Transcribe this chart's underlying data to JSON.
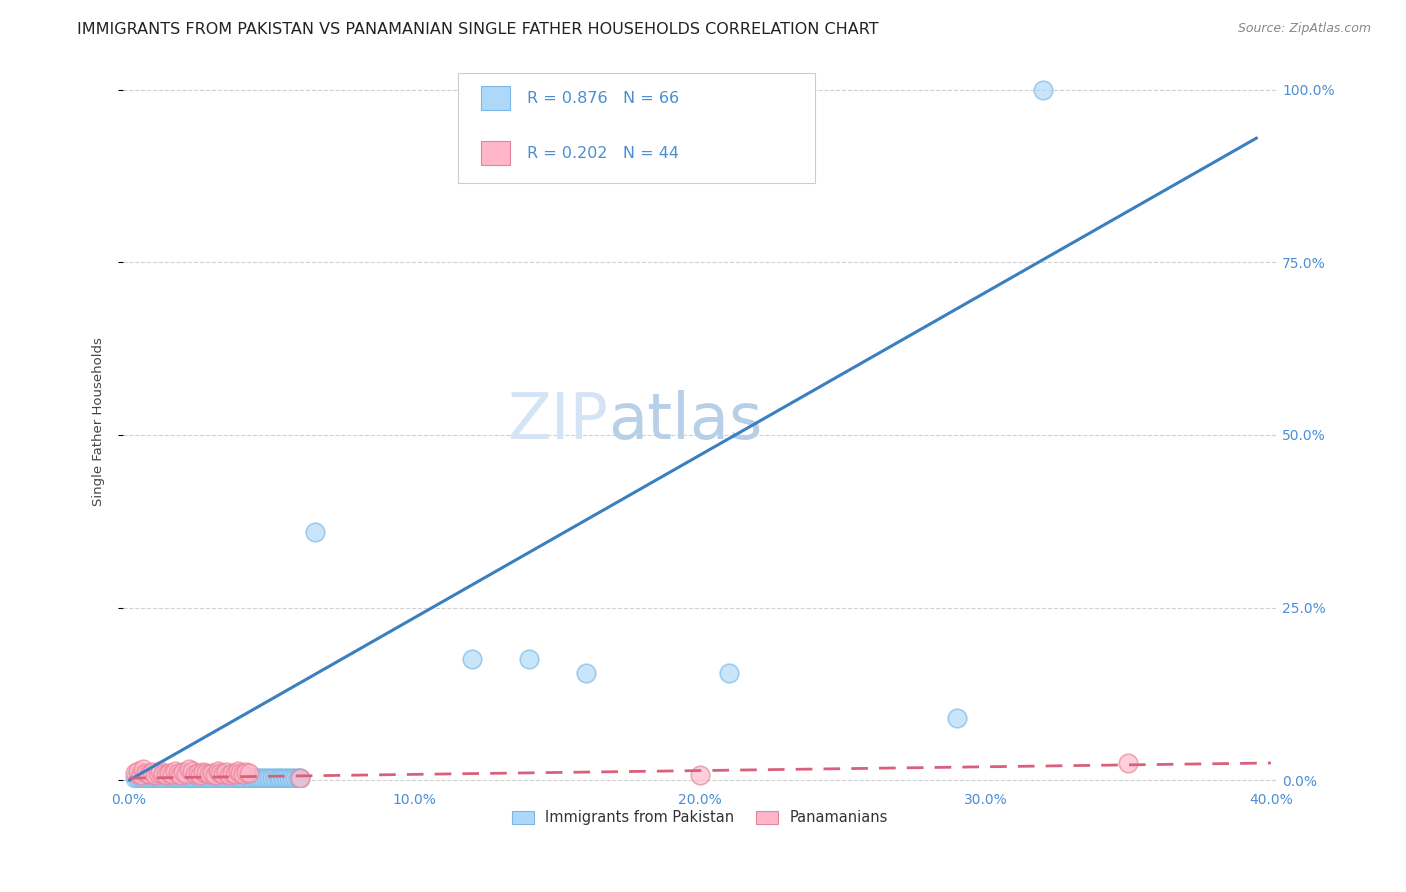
{
  "title": "IMMIGRANTS FROM PAKISTAN VS PANAMANIAN SINGLE FATHER HOUSEHOLDS CORRELATION CHART",
  "source": "Source: ZipAtlas.com",
  "ylabel": "Single Father Households",
  "watermark_zip": "ZIP",
  "watermark_atlas": "atlas",
  "legend_entries": [
    {
      "label": "Immigrants from Pakistan",
      "R": 0.876,
      "N": 66,
      "color": "#add8f7"
    },
    {
      "label": "Panamanians",
      "R": 0.202,
      "N": 44,
      "color": "#ffb6c8"
    }
  ],
  "pakistan_points": [
    [
      0.002,
      0.003
    ],
    [
      0.003,
      0.003
    ],
    [
      0.004,
      0.003
    ],
    [
      0.005,
      0.003
    ],
    [
      0.006,
      0.003
    ],
    [
      0.007,
      0.003
    ],
    [
      0.008,
      0.003
    ],
    [
      0.009,
      0.003
    ],
    [
      0.01,
      0.003
    ],
    [
      0.011,
      0.003
    ],
    [
      0.012,
      0.003
    ],
    [
      0.013,
      0.003
    ],
    [
      0.014,
      0.003
    ],
    [
      0.015,
      0.003
    ],
    [
      0.016,
      0.003
    ],
    [
      0.017,
      0.003
    ],
    [
      0.018,
      0.003
    ],
    [
      0.019,
      0.003
    ],
    [
      0.02,
      0.003
    ],
    [
      0.021,
      0.003
    ],
    [
      0.022,
      0.003
    ],
    [
      0.023,
      0.003
    ],
    [
      0.024,
      0.003
    ],
    [
      0.025,
      0.003
    ],
    [
      0.026,
      0.003
    ],
    [
      0.027,
      0.003
    ],
    [
      0.028,
      0.003
    ],
    [
      0.029,
      0.003
    ],
    [
      0.03,
      0.003
    ],
    [
      0.031,
      0.003
    ],
    [
      0.032,
      0.003
    ],
    [
      0.033,
      0.003
    ],
    [
      0.034,
      0.003
    ],
    [
      0.035,
      0.003
    ],
    [
      0.036,
      0.003
    ],
    [
      0.037,
      0.003
    ],
    [
      0.038,
      0.003
    ],
    [
      0.039,
      0.003
    ],
    [
      0.04,
      0.003
    ],
    [
      0.041,
      0.003
    ],
    [
      0.042,
      0.003
    ],
    [
      0.043,
      0.003
    ],
    [
      0.044,
      0.003
    ],
    [
      0.045,
      0.003
    ],
    [
      0.046,
      0.003
    ],
    [
      0.047,
      0.003
    ],
    [
      0.048,
      0.003
    ],
    [
      0.049,
      0.003
    ],
    [
      0.05,
      0.003
    ],
    [
      0.051,
      0.003
    ],
    [
      0.052,
      0.003
    ],
    [
      0.053,
      0.003
    ],
    [
      0.054,
      0.003
    ],
    [
      0.055,
      0.003
    ],
    [
      0.056,
      0.003
    ],
    [
      0.057,
      0.003
    ],
    [
      0.058,
      0.003
    ],
    [
      0.059,
      0.003
    ],
    [
      0.06,
      0.003
    ],
    [
      0.065,
      0.36
    ],
    [
      0.12,
      0.175
    ],
    [
      0.14,
      0.175
    ],
    [
      0.16,
      0.155
    ],
    [
      0.21,
      0.155
    ],
    [
      0.29,
      0.09
    ],
    [
      0.32,
      1.0
    ]
  ],
  "panama_points": [
    [
      0.002,
      0.01
    ],
    [
      0.003,
      0.013
    ],
    [
      0.004,
      0.008
    ],
    [
      0.005,
      0.016
    ],
    [
      0.006,
      0.01
    ],
    [
      0.007,
      0.009
    ],
    [
      0.008,
      0.012
    ],
    [
      0.009,
      0.008
    ],
    [
      0.01,
      0.01
    ],
    [
      0.011,
      0.013
    ],
    [
      0.012,
      0.009
    ],
    [
      0.013,
      0.008
    ],
    [
      0.014,
      0.011
    ],
    [
      0.015,
      0.009
    ],
    [
      0.016,
      0.014
    ],
    [
      0.017,
      0.01
    ],
    [
      0.018,
      0.008
    ],
    [
      0.019,
      0.012
    ],
    [
      0.02,
      0.009
    ],
    [
      0.021,
      0.016
    ],
    [
      0.022,
      0.013
    ],
    [
      0.023,
      0.009
    ],
    [
      0.024,
      0.011
    ],
    [
      0.025,
      0.008
    ],
    [
      0.026,
      0.012
    ],
    [
      0.027,
      0.01
    ],
    [
      0.028,
      0.009
    ],
    [
      0.029,
      0.011
    ],
    [
      0.03,
      0.008
    ],
    [
      0.031,
      0.013
    ],
    [
      0.032,
      0.01
    ],
    [
      0.033,
      0.009
    ],
    [
      0.034,
      0.012
    ],
    [
      0.035,
      0.008
    ],
    [
      0.036,
      0.011
    ],
    [
      0.037,
      0.009
    ],
    [
      0.038,
      0.013
    ],
    [
      0.039,
      0.01
    ],
    [
      0.04,
      0.009
    ],
    [
      0.041,
      0.012
    ],
    [
      0.042,
      0.011
    ],
    [
      0.06,
      0.003
    ],
    [
      0.2,
      0.008
    ],
    [
      0.35,
      0.025
    ]
  ],
  "pakistan_line": {
    "x0": 0.0,
    "y0": 0.0,
    "x1": 0.395,
    "y1": 0.93
  },
  "panama_line": {
    "x0": 0.0,
    "y0": 0.003,
    "x1": 0.4,
    "y1": 0.025
  },
  "xlim": [
    -0.002,
    0.402
  ],
  "ylim": [
    -0.01,
    1.05
  ],
  "xticks": [
    0.0,
    0.1,
    0.2,
    0.3,
    0.4
  ],
  "xticklabels": [
    "0.0%",
    "10.0%",
    "20.0%",
    "30.0%",
    "40.0%"
  ],
  "yticks": [
    0.0,
    0.25,
    0.5,
    0.75,
    1.0
  ],
  "yticklabels_right": [
    "0.0%",
    "25.0%",
    "50.0%",
    "75.0%",
    "100.0%"
  ],
  "grid_color": "#cccccc",
  "blue_color": "#add8f7",
  "blue_edge_color": "#7ab8e8",
  "pink_color": "#ffb6c8",
  "pink_edge_color": "#e8829a",
  "blue_line_color": "#3a7fc1",
  "pink_line_color": "#d9607a",
  "tick_color": "#4a8fd4",
  "bg_color": "#ffffff",
  "title_fontsize": 11.5,
  "label_fontsize": 9.5,
  "tick_fontsize": 10,
  "watermark_fontsize": 46,
  "source_fontsize": 9
}
